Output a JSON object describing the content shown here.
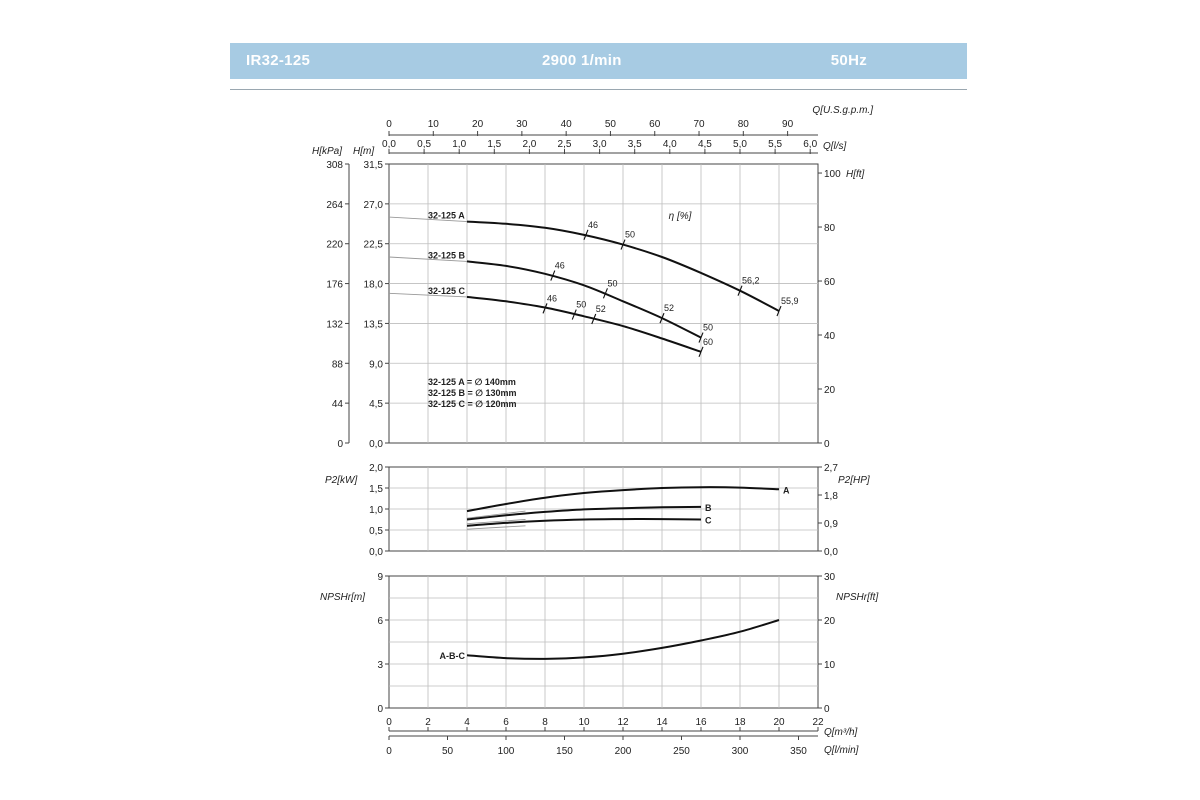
{
  "header": {
    "model": "IR32-125",
    "speed": "2900 1/min",
    "frequency": "50Hz",
    "bg_color": "#a7cbe3",
    "text_color": "#ffffff"
  },
  "axes": {
    "q_usgpm_label": "Q[U.S.g.p.m.]",
    "q_usgpm_ticks": [
      "0",
      "10",
      "20",
      "30",
      "40",
      "50",
      "60",
      "70",
      "80",
      "90"
    ],
    "q_ls_label": "Q[l/s]",
    "q_ls_ticks": [
      "0,0",
      "0,5",
      "1,0",
      "1,5",
      "2,0",
      "2,5",
      "3,0",
      "3,5",
      "4,0",
      "4,5",
      "5,0",
      "5,5",
      "6,0"
    ],
    "q_m3h_label": "Q[m³/h]",
    "q_m3h_ticks": [
      "0",
      "2",
      "4",
      "6",
      "8",
      "10",
      "12",
      "14",
      "16",
      "18",
      "20",
      "22"
    ],
    "q_lmin_label": "Q[l/min]",
    "q_lmin_ticks": [
      "0",
      "50",
      "100",
      "150",
      "200",
      "250",
      "300",
      "350"
    ]
  },
  "chart_data": [
    {
      "type": "line",
      "panel": "head",
      "x_unit": "Q[m³/h]",
      "xlim": [
        0,
        22
      ],
      "ylabel_left_kpa": "H[kPa]",
      "ylabel_left_m": "H[m]",
      "ylabel_right": "H[ft]",
      "ylim": [
        0,
        31.5
      ],
      "kpa_ticks": [
        "308",
        "264",
        "220",
        "176",
        "132",
        "88",
        "44",
        "0"
      ],
      "m_ticks": [
        "31,5",
        "27,0",
        "22,5",
        "18,0",
        "13,5",
        "9,0",
        "4,5",
        "0,0"
      ],
      "ft_ticks": [
        "100",
        "80",
        "60",
        "40",
        "20",
        "0"
      ],
      "efficiency_label": "η [%]",
      "series": [
        {
          "name": "32-125 A",
          "x": [
            4,
            6,
            8,
            10,
            12,
            14,
            16,
            18,
            20
          ],
          "y": [
            25.0,
            24.75,
            24.3,
            23.5,
            22.4,
            21.0,
            19.2,
            17.2,
            14.9
          ],
          "ext_x": [
            0,
            4
          ],
          "ext_y": [
            25.5,
            25.0
          ],
          "eff_marks": [
            {
              "x": 10.1,
              "y": 23.5,
              "label": "46"
            },
            {
              "x": 12.0,
              "y": 22.4,
              "label": "50"
            },
            {
              "x": 18.0,
              "y": 17.2,
              "label": "56,2"
            },
            {
              "x": 20.0,
              "y": 14.9,
              "label": "55,9"
            }
          ]
        },
        {
          "name": "32-125 B",
          "x": [
            4,
            6,
            8,
            10,
            12,
            14,
            16
          ],
          "y": [
            20.5,
            20.0,
            19.1,
            17.8,
            16.0,
            14.1,
            11.9
          ],
          "ext_x": [
            0,
            4
          ],
          "ext_y": [
            21.0,
            20.5
          ],
          "eff_marks": [
            {
              "x": 8.4,
              "y": 18.9,
              "label": "46"
            },
            {
              "x": 11.1,
              "y": 16.9,
              "label": "50"
            },
            {
              "x": 14.0,
              "y": 14.1,
              "label": "52"
            },
            {
              "x": 16.0,
              "y": 11.9,
              "label": "50"
            }
          ]
        },
        {
          "name": "32-125 C",
          "x": [
            4,
            6,
            8,
            10,
            12,
            14,
            16
          ],
          "y": [
            16.5,
            16.0,
            15.3,
            14.3,
            13.2,
            11.8,
            10.3
          ],
          "ext_x": [
            0,
            4
          ],
          "ext_y": [
            16.9,
            16.5
          ],
          "eff_marks": [
            {
              "x": 8.0,
              "y": 15.2,
              "label": "46"
            },
            {
              "x": 9.5,
              "y": 14.5,
              "label": "50"
            },
            {
              "x": 10.5,
              "y": 14.0,
              "label": "52"
            },
            {
              "x": 16.0,
              "y": 10.3,
              "label": "60"
            }
          ]
        }
      ],
      "legend": [
        "32-125 A = ∅ 140mm",
        "32-125 B = ∅ 130mm",
        "32-125 C = ∅ 120mm"
      ]
    },
    {
      "type": "line",
      "panel": "power",
      "ylabel_left": "P2[kW]",
      "ylabel_right": "P2[HP]",
      "ylim": [
        0,
        2.0
      ],
      "kw_ticks": [
        "2,0",
        "1,5",
        "1,0",
        "0,5",
        "0,0"
      ],
      "hp_ticks": [
        "2,7",
        "1,8",
        "0,9",
        "0,0"
      ],
      "series": [
        {
          "name": "A",
          "x": [
            4,
            6,
            8,
            10,
            12,
            14,
            16,
            18,
            20
          ],
          "y": [
            0.95,
            1.12,
            1.27,
            1.38,
            1.45,
            1.5,
            1.52,
            1.51,
            1.47
          ],
          "ext_x": [
            4,
            7
          ],
          "ext_y": [
            0.78,
            0.95
          ]
        },
        {
          "name": "B",
          "x": [
            4,
            6,
            8,
            10,
            12,
            14,
            16
          ],
          "y": [
            0.75,
            0.85,
            0.93,
            0.99,
            1.02,
            1.04,
            1.05
          ],
          "ext_x": [
            4,
            7
          ],
          "ext_y": [
            0.65,
            0.75
          ]
        },
        {
          "name": "C",
          "x": [
            4,
            6,
            8,
            10,
            12,
            14,
            16
          ],
          "y": [
            0.6,
            0.67,
            0.72,
            0.75,
            0.76,
            0.76,
            0.75
          ],
          "ext_x": [
            4,
            7
          ],
          "ext_y": [
            0.52,
            0.6
          ]
        }
      ]
    },
    {
      "type": "line",
      "panel": "npsh",
      "ylabel_left": "NPSHr[m]",
      "ylabel_right": "NPSHr[ft]",
      "ylim": [
        0,
        9
      ],
      "m_ticks": [
        "9",
        "6",
        "3",
        "0"
      ],
      "ft_ticks": [
        "30",
        "20",
        "10",
        "0"
      ],
      "series": [
        {
          "name": "A-B-C",
          "x": [
            4,
            6,
            8,
            10,
            12,
            14,
            16,
            18,
            20
          ],
          "y": [
            3.6,
            3.4,
            3.35,
            3.45,
            3.7,
            4.1,
            4.6,
            5.2,
            6.0
          ]
        }
      ]
    }
  ]
}
